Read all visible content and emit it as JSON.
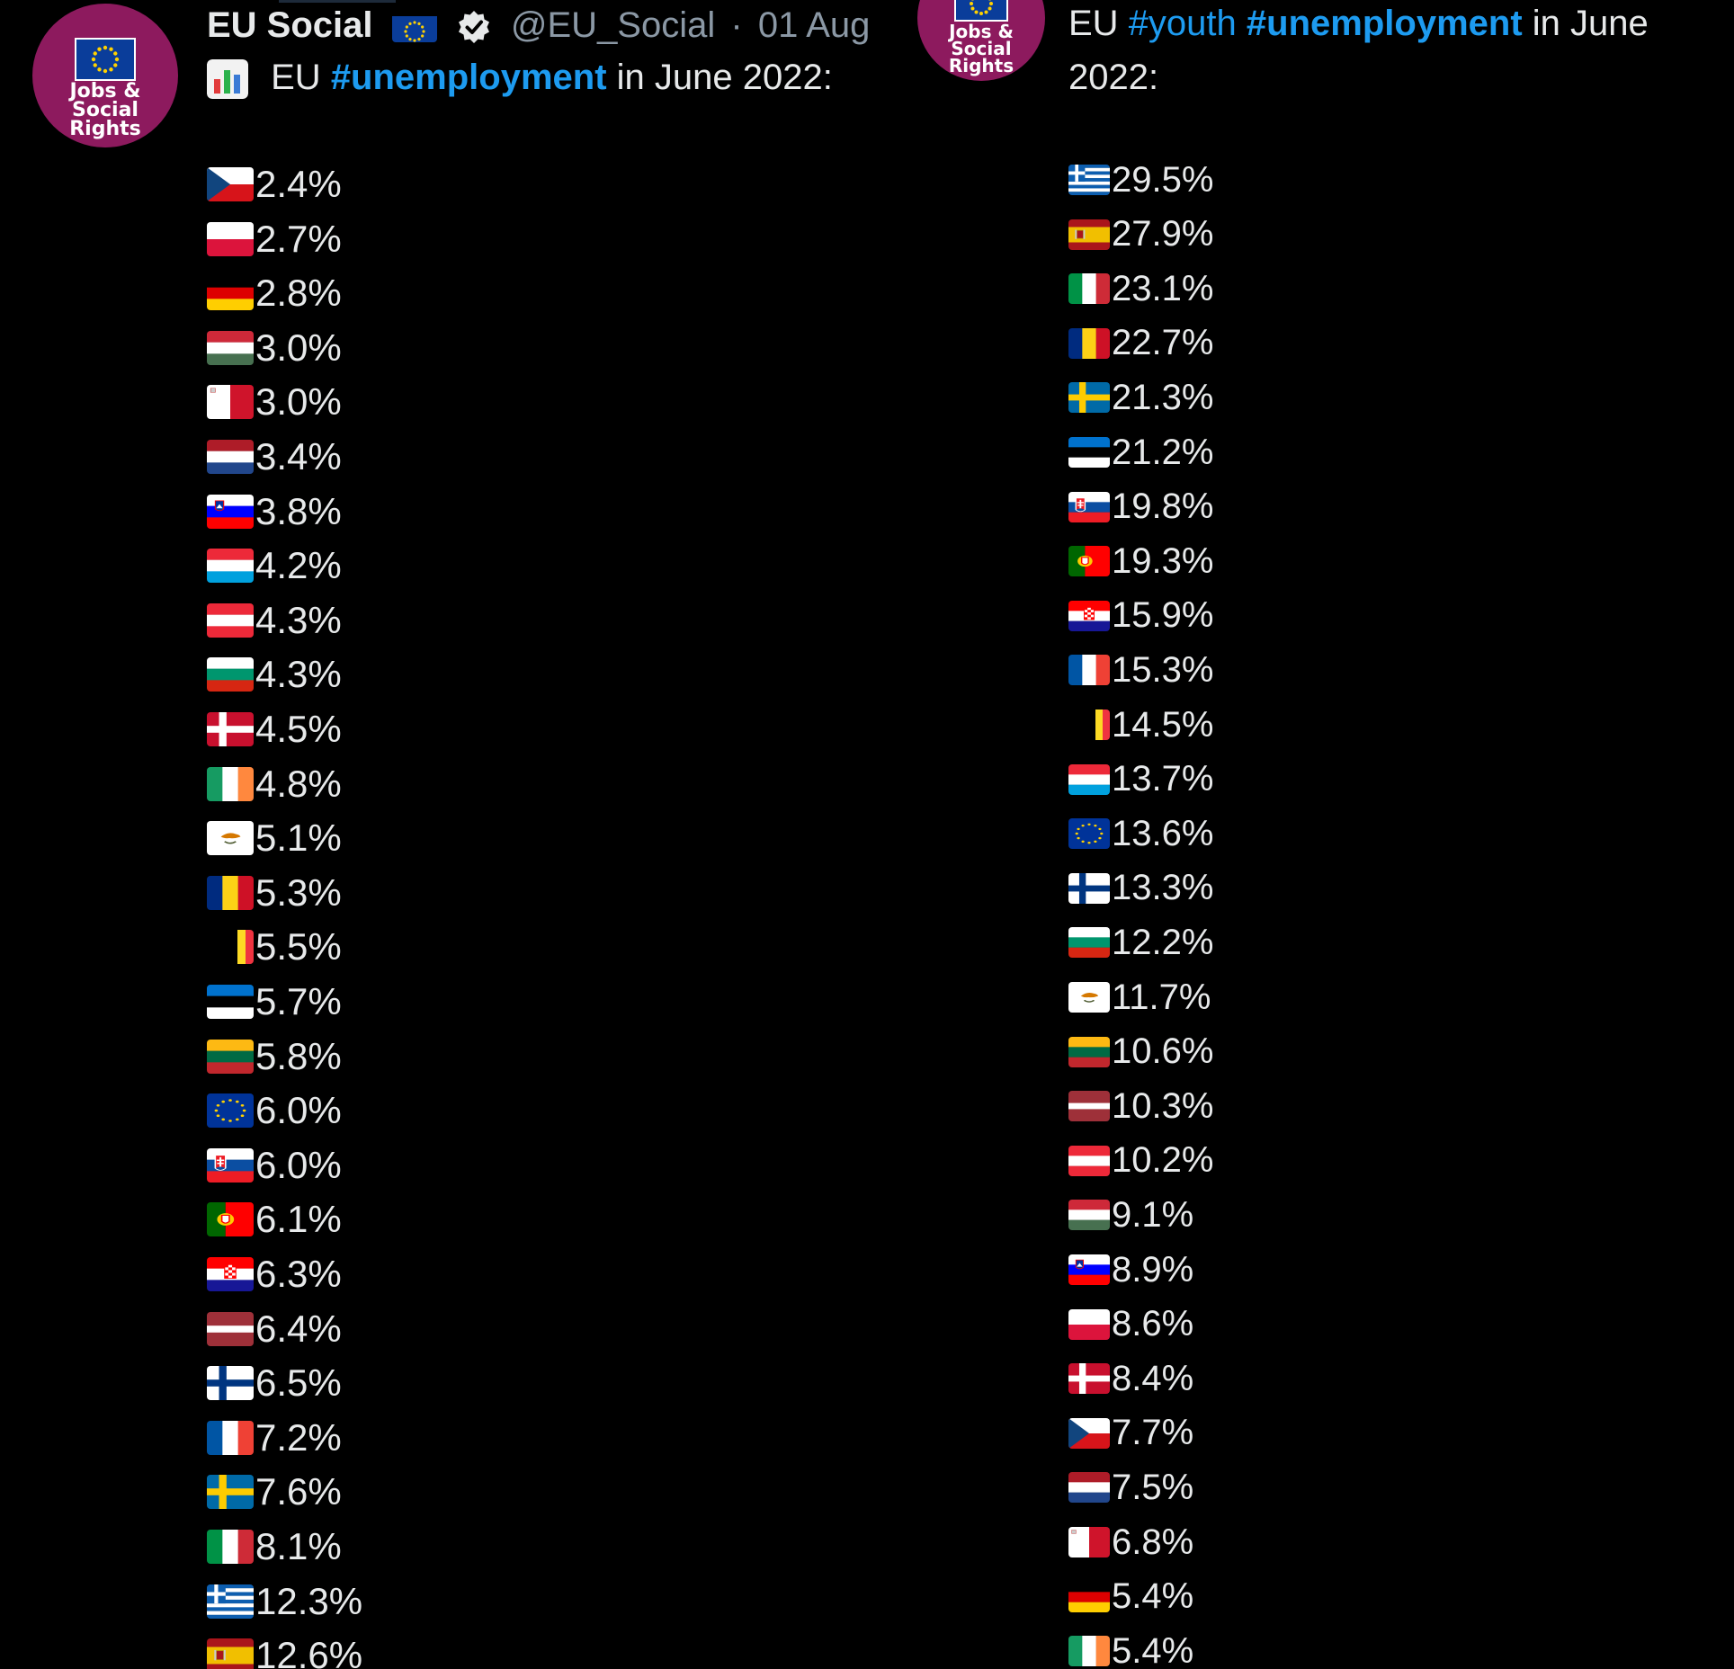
{
  "colors": {
    "background": "#000000",
    "text": "#e7e9ea",
    "muted": "#8b98a5",
    "hashtag": "#1d9bf0",
    "avatar": "#8d1a5e",
    "eu_blue": "#0a3d9a"
  },
  "left": {
    "author": {
      "avatar_lines": [
        "Jobs &",
        "Social",
        "Rights"
      ],
      "name": "EU Social",
      "name_badge_icon": "eu-flag-icon",
      "verified_icon": "verified-icon",
      "handle": "@EU_Social",
      "separator": "·",
      "date": "01 Aug"
    },
    "tweet": {
      "emoji_icon": "bar-chart-icon",
      "prefix": "EU ",
      "hashtag": "#unemployment",
      "suffix": " in June 2022:"
    },
    "rows": [
      {
        "flag": "cz",
        "value": "2.4%"
      },
      {
        "flag": "pl",
        "value": "2.7%"
      },
      {
        "flag": "de",
        "value": "2.8%"
      },
      {
        "flag": "hu",
        "value": "3.0%"
      },
      {
        "flag": "mt",
        "value": "3.0%"
      },
      {
        "flag": "nl",
        "value": "3.4%"
      },
      {
        "flag": "si",
        "value": "3.8%"
      },
      {
        "flag": "lu",
        "value": "4.2%"
      },
      {
        "flag": "at",
        "value": "4.3%"
      },
      {
        "flag": "bg",
        "value": "4.3%"
      },
      {
        "flag": "dk",
        "value": "4.5%"
      },
      {
        "flag": "ie",
        "value": "4.8%"
      },
      {
        "flag": "cy",
        "value": "5.1%"
      },
      {
        "flag": "ro",
        "value": "5.3%"
      },
      {
        "flag": "be",
        "value": "5.5%"
      },
      {
        "flag": "ee",
        "value": "5.7%"
      },
      {
        "flag": "lt",
        "value": "5.8%"
      },
      {
        "flag": "eu",
        "value": "6.0%"
      },
      {
        "flag": "sk",
        "value": "6.0%"
      },
      {
        "flag": "pt",
        "value": "6.1%"
      },
      {
        "flag": "hr",
        "value": "6.3%"
      },
      {
        "flag": "lv",
        "value": "6.4%"
      },
      {
        "flag": "fi",
        "value": "6.5%"
      },
      {
        "flag": "fr",
        "value": "7.2%"
      },
      {
        "flag": "se",
        "value": "7.6%"
      },
      {
        "flag": "it",
        "value": "8.1%"
      },
      {
        "flag": "gr",
        "value": "12.3%"
      },
      {
        "flag": "es",
        "value": "12.6%"
      }
    ]
  },
  "right": {
    "author": {
      "avatar_lines": [
        "Jobs &",
        "Social",
        "Rights"
      ]
    },
    "tweet": {
      "line1_prefix": "EU ",
      "hashtag1": "#youth",
      "space": " ",
      "hashtag2": "#unemployment",
      "line1_suffix": " in June",
      "line2": "2022:"
    },
    "rows": [
      {
        "flag": "gr",
        "value": "29.5%"
      },
      {
        "flag": "es",
        "value": "27.9%"
      },
      {
        "flag": "it",
        "value": "23.1%"
      },
      {
        "flag": "ro",
        "value": "22.7%"
      },
      {
        "flag": "se",
        "value": "21.3%"
      },
      {
        "flag": "ee",
        "value": "21.2%"
      },
      {
        "flag": "sk",
        "value": "19.8%"
      },
      {
        "flag": "pt",
        "value": "19.3%"
      },
      {
        "flag": "hr",
        "value": "15.9%"
      },
      {
        "flag": "fr",
        "value": "15.3%"
      },
      {
        "flag": "be",
        "value": "14.5%"
      },
      {
        "flag": "lu",
        "value": "13.7%"
      },
      {
        "flag": "eu",
        "value": "13.6%"
      },
      {
        "flag": "fi",
        "value": "13.3%"
      },
      {
        "flag": "bg",
        "value": "12.2%"
      },
      {
        "flag": "cy",
        "value": "11.7%"
      },
      {
        "flag": "lt",
        "value": "10.6%"
      },
      {
        "flag": "lv",
        "value": "10.3%"
      },
      {
        "flag": "at",
        "value": "10.2%"
      },
      {
        "flag": "hu",
        "value": "9.1%"
      },
      {
        "flag": "si",
        "value": "8.9%"
      },
      {
        "flag": "pl",
        "value": "8.6%"
      },
      {
        "flag": "dk",
        "value": "8.4%"
      },
      {
        "flag": "cz",
        "value": "7.7%"
      },
      {
        "flag": "nl",
        "value": "7.5%"
      },
      {
        "flag": "mt",
        "value": "6.8%"
      },
      {
        "flag": "de",
        "value": "5.4%"
      },
      {
        "flag": "ie",
        "value": "5.4%"
      }
    ]
  }
}
